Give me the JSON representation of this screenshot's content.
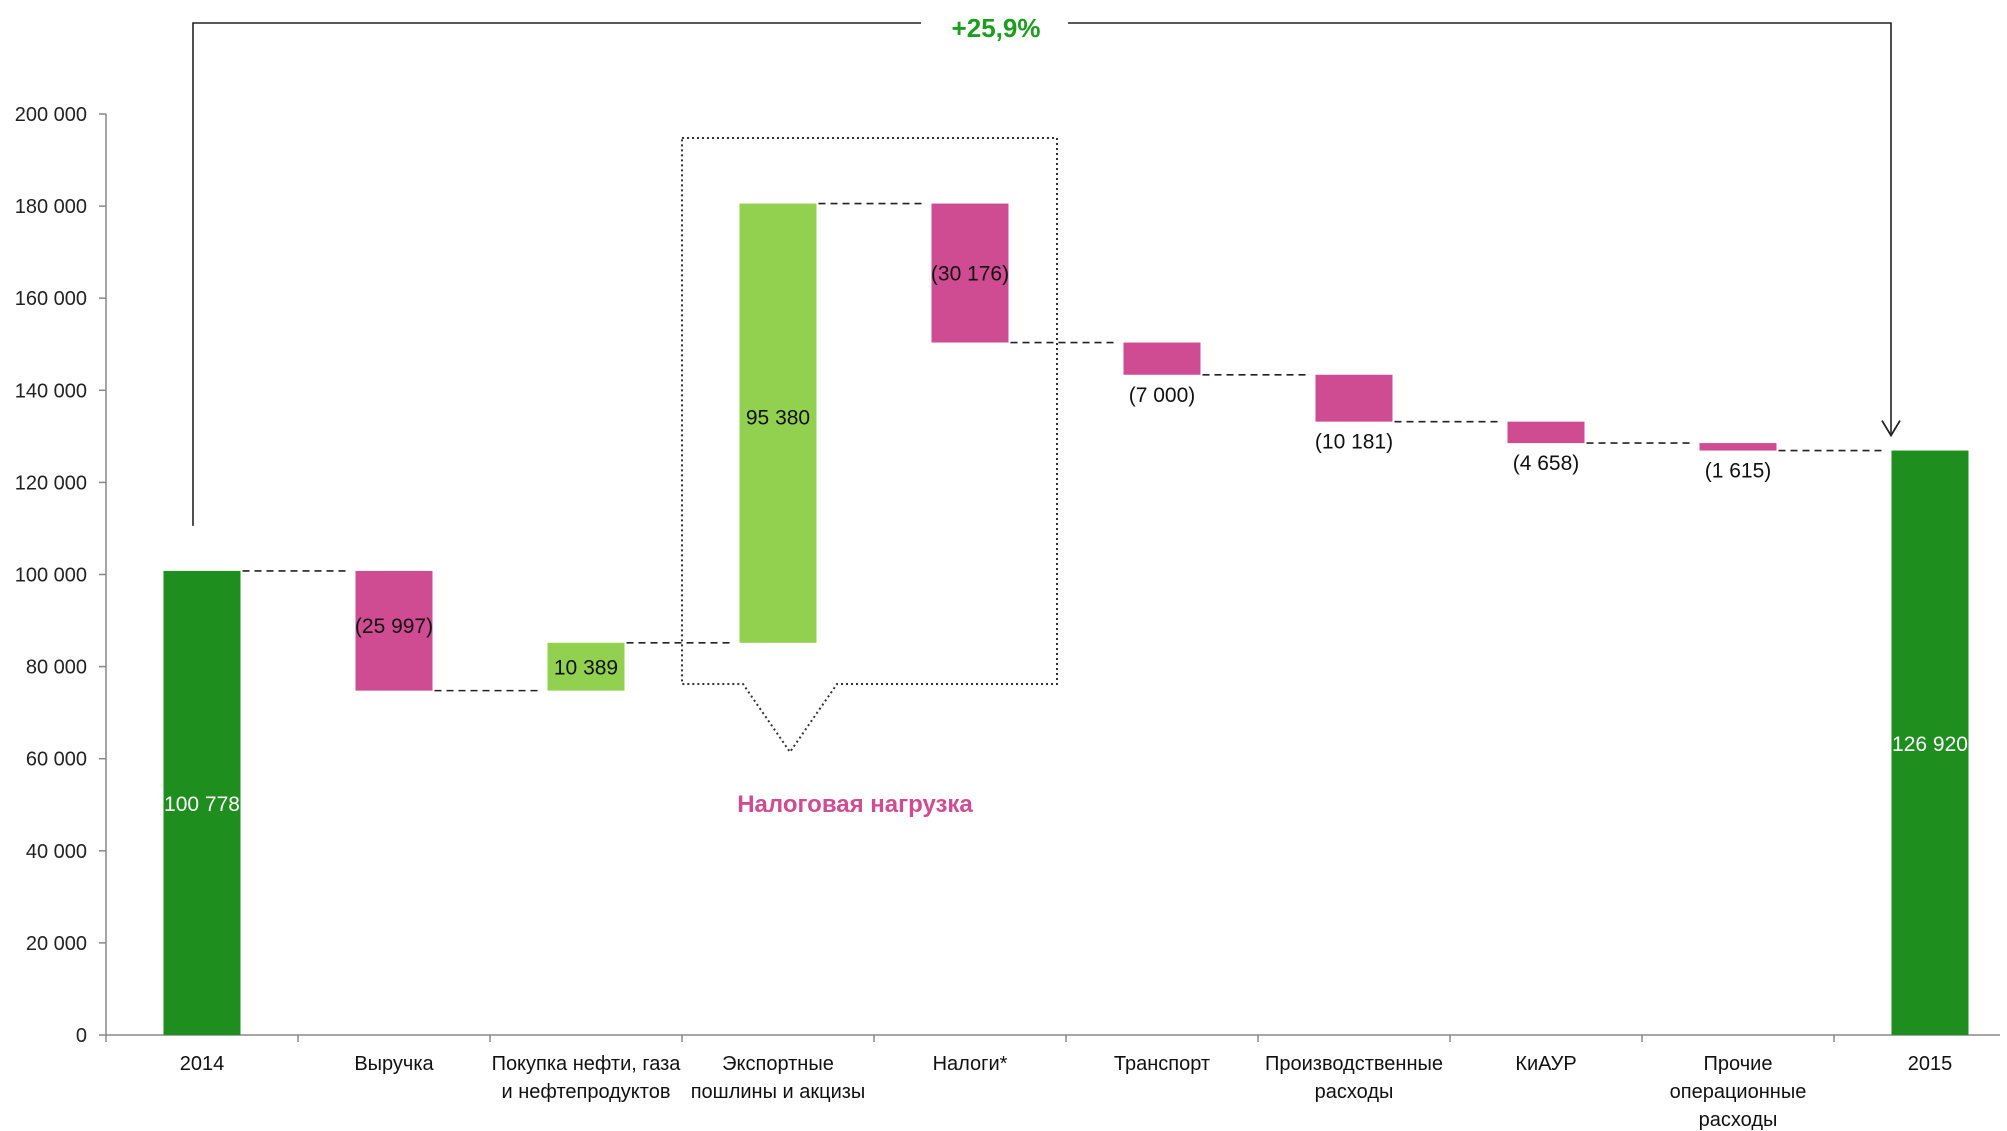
{
  "chart_data": {
    "type": "waterfall",
    "title": "",
    "xlabel": "",
    "ylabel": "",
    "ylim": [
      0,
      200000
    ],
    "yticks": [
      0,
      20000,
      40000,
      60000,
      80000,
      100000,
      120000,
      140000,
      160000,
      180000,
      200000
    ],
    "ytick_labels": [
      "0",
      "20 000",
      "40 000",
      "60 000",
      "80 000",
      "100 000",
      "120 000",
      "140 000",
      "160 000",
      "180 000",
      "200 000"
    ],
    "grid": false,
    "categories": [
      [
        "2014"
      ],
      [
        "Выручка"
      ],
      [
        "Покупка нефти, газа",
        "и нефтепродуктов"
      ],
      [
        "Экспортные",
        "пошлины и акцизы"
      ],
      [
        "Налоги*"
      ],
      [
        "Транспорт"
      ],
      [
        "Производственные",
        "расходы"
      ],
      [
        "КиАУР"
      ],
      [
        "Прочие",
        "операционные",
        "расходы"
      ],
      [
        "2015"
      ]
    ],
    "steps": [
      {
        "kind": "total",
        "value": 100778,
        "label": "100 778",
        "label_pos": "inside"
      },
      {
        "kind": "delta",
        "value": -25997,
        "label": "(25 997)",
        "label_pos": "inside"
      },
      {
        "kind": "delta",
        "value": 10389,
        "label": "10 389",
        "label_pos": "inside"
      },
      {
        "kind": "delta",
        "value": 95380,
        "label": "95 380",
        "label_pos": "inside"
      },
      {
        "kind": "delta",
        "value": -30176,
        "label": "(30 176)",
        "label_pos": "inside"
      },
      {
        "kind": "delta",
        "value": -7000,
        "label": "(7 000)",
        "label_pos": "below"
      },
      {
        "kind": "delta",
        "value": -10181,
        "label": "(10 181)",
        "label_pos": "below"
      },
      {
        "kind": "delta",
        "value": -4658,
        "label": "(4 658)",
        "label_pos": "below"
      },
      {
        "kind": "delta",
        "value": -1615,
        "label": "(1 615)",
        "label_pos": "below"
      },
      {
        "kind": "total",
        "value": 126920,
        "label": "126 920",
        "label_pos": "inside"
      }
    ],
    "change_annotation": {
      "from": "2014",
      "to": "2015",
      "text": "+25,9%"
    },
    "callout": {
      "text": "Налоговая нагрузка",
      "groups": [
        "Экспортные пошлины и акцизы",
        "Налоги*"
      ]
    }
  },
  "colors": {
    "total": "#1E8F1E",
    "increase": "#92D050",
    "decrease": "#CF4C93",
    "change_text": "#1E9E1E",
    "callout_text": "#CF4C93",
    "axis": "#888888"
  }
}
